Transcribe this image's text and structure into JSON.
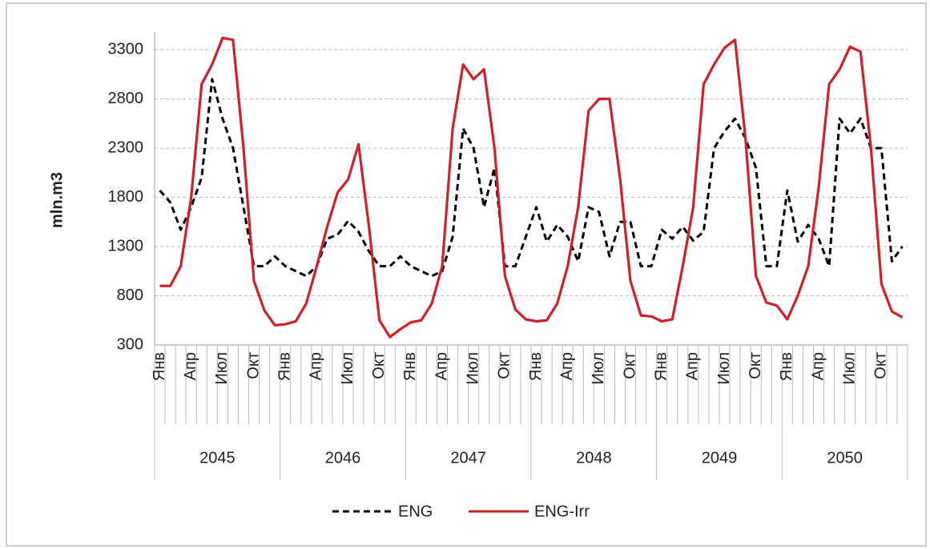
{
  "chart_data": {
    "type": "line",
    "y_label": "mln.m3",
    "categories": [
      "Янв",
      null,
      null,
      "Апр",
      null,
      null,
      "Июл",
      null,
      null,
      "Окт",
      null,
      null,
      "Янв",
      null,
      null,
      "Апр",
      null,
      null,
      "Июл",
      null,
      null,
      "Окт",
      null,
      null,
      "Янв",
      null,
      null,
      "Апр",
      null,
      null,
      "Июл",
      null,
      null,
      "Окт",
      null,
      null,
      "Янв",
      null,
      null,
      "Апр",
      null,
      null,
      "Июл",
      null,
      null,
      "Окт",
      null,
      null,
      "Янв",
      null,
      null,
      "Апр",
      null,
      null,
      "Июл",
      null,
      null,
      "Окт",
      null,
      null,
      "Янв",
      null,
      null,
      "Апр",
      null,
      null,
      "Июл",
      null,
      null,
      "Окт",
      null,
      null
    ],
    "groups": [
      "2045",
      "2046",
      "2047",
      "2048",
      "2049",
      "2050"
    ],
    "ylim": [
      300,
      3480
    ],
    "yticks": [
      300,
      800,
      1300,
      1800,
      2300,
      2800,
      3300
    ],
    "grid": true,
    "legend": "bottom",
    "series": [
      {
        "name": "ENG",
        "color": "#000000",
        "dashed": true,
        "values": [
          1870,
          1750,
          1470,
          1700,
          2000,
          3000,
          2600,
          2300,
          1700,
          1100,
          1100,
          1200,
          1100,
          1050,
          1000,
          1100,
          1380,
          1420,
          1560,
          1450,
          1250,
          1100,
          1100,
          1200,
          1100,
          1050,
          1000,
          1050,
          1400,
          2500,
          2300,
          1700,
          2100,
          1100,
          1100,
          1400,
          1700,
          1350,
          1520,
          1400,
          1150,
          1700,
          1650,
          1200,
          1550,
          1550,
          1100,
          1100,
          1470,
          1380,
          1500,
          1360,
          1450,
          2300,
          2470,
          2600,
          2400,
          2100,
          1100,
          1100,
          1870,
          1350,
          1520,
          1380,
          1100,
          2600,
          2450,
          2600,
          2300,
          2300,
          1150,
          1300
        ]
      },
      {
        "name": "ENG-Irr",
        "color": "#d0202a",
        "dashed": false,
        "values": [
          900,
          900,
          1100,
          1800,
          2950,
          3150,
          3420,
          3400,
          2300,
          950,
          650,
          500,
          510,
          540,
          720,
          1100,
          1500,
          1850,
          1980,
          2340,
          1500,
          550,
          380,
          460,
          530,
          550,
          720,
          1100,
          2500,
          3150,
          3000,
          3100,
          2300,
          1000,
          660,
          560,
          540,
          550,
          720,
          1100,
          1700,
          2680,
          2800,
          2800,
          2000,
          950,
          600,
          590,
          540,
          560,
          1100,
          1700,
          2950,
          3150,
          3320,
          3400,
          2400,
          1000,
          730,
          700,
          560,
          800,
          1100,
          1900,
          2950,
          3100,
          3330,
          3280,
          2300,
          920,
          640,
          580
        ]
      }
    ]
  }
}
